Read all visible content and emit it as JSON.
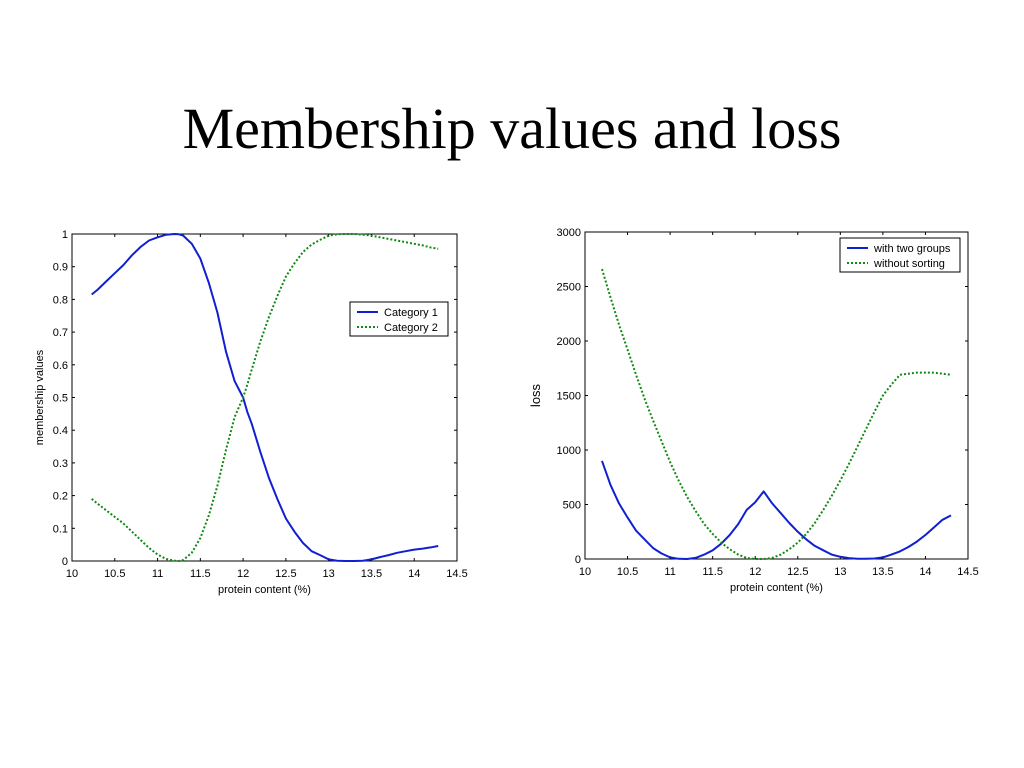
{
  "slide": {
    "title": "Membership values and loss"
  },
  "colors": {
    "category1": "#1020d0",
    "category2": "#118a11",
    "axis": "#000000"
  },
  "chart_data": [
    {
      "type": "line",
      "title": "",
      "xlabel": "protein content (%)",
      "ylabel": "membership values",
      "xlim": [
        10,
        14.5
      ],
      "ylim": [
        0,
        1
      ],
      "xticks": [
        "10",
        "10.5",
        "11",
        "11.5",
        "12",
        "12.5",
        "13",
        "13.5",
        "14",
        "14.5"
      ],
      "yticks": [
        "0",
        "0.1",
        "0.2",
        "0.3",
        "0.4",
        "0.5",
        "0.6",
        "0.7",
        "0.8",
        "0.9",
        "1"
      ],
      "legend": "top-right",
      "grid": false,
      "x": [
        10.23,
        10.3,
        10.4,
        10.5,
        10.6,
        10.7,
        10.8,
        10.9,
        11.0,
        11.1,
        11.2,
        11.25,
        11.3,
        11.4,
        11.5,
        11.6,
        11.7,
        11.8,
        11.9,
        12.0,
        12.05,
        12.1,
        12.2,
        12.3,
        12.4,
        12.5,
        12.6,
        12.7,
        12.8,
        12.9,
        13.0,
        13.1,
        13.2,
        13.3,
        13.4,
        13.5,
        13.6,
        13.7,
        13.8,
        13.9,
        14.0,
        14.1,
        14.2,
        14.28
      ],
      "series": [
        {
          "name": "Category 1",
          "style": "solid",
          "values": [
            0.815,
            0.83,
            0.855,
            0.88,
            0.905,
            0.935,
            0.96,
            0.98,
            0.99,
            0.998,
            1.0,
            0.999,
            0.995,
            0.97,
            0.925,
            0.85,
            0.76,
            0.64,
            0.55,
            0.5,
            0.455,
            0.42,
            0.335,
            0.255,
            0.19,
            0.13,
            0.09,
            0.055,
            0.03,
            0.018,
            0.005,
            0.001,
            0.0,
            0.0,
            0.001,
            0.005,
            0.012,
            0.018,
            0.025,
            0.03,
            0.035,
            0.038,
            0.042,
            0.046
          ]
        },
        {
          "name": "Category 2",
          "style": "dotted",
          "values": [
            0.19,
            0.175,
            0.155,
            0.135,
            0.115,
            0.09,
            0.065,
            0.04,
            0.02,
            0.006,
            0.001,
            0.0,
            0.003,
            0.025,
            0.07,
            0.14,
            0.23,
            0.34,
            0.44,
            0.5,
            0.54,
            0.585,
            0.67,
            0.745,
            0.81,
            0.87,
            0.91,
            0.945,
            0.968,
            0.982,
            0.995,
            0.999,
            1.0,
            1.0,
            0.998,
            0.995,
            0.99,
            0.985,
            0.98,
            0.975,
            0.97,
            0.965,
            0.958,
            0.955
          ]
        }
      ]
    },
    {
      "type": "line",
      "title": "",
      "xlabel": "protein content (%)",
      "ylabel": "loss",
      "xlim": [
        10,
        14.5
      ],
      "ylim": [
        0,
        3000
      ],
      "xticks": [
        "10",
        "10.5",
        "11",
        "11.5",
        "12",
        "12.5",
        "13",
        "13.5",
        "14",
        "14.5"
      ],
      "yticks": [
        "0",
        "500",
        "1000",
        "1500",
        "2000",
        "2500",
        "3000"
      ],
      "legend": "top-right",
      "grid": false,
      "x": [
        10.2,
        10.3,
        10.4,
        10.5,
        10.6,
        10.7,
        10.8,
        10.9,
        11.0,
        11.1,
        11.2,
        11.3,
        11.4,
        11.5,
        11.6,
        11.7,
        11.8,
        11.9,
        12.0,
        12.1,
        12.2,
        12.3,
        12.4,
        12.5,
        12.6,
        12.7,
        12.8,
        12.9,
        13.0,
        13.1,
        13.2,
        13.3,
        13.4,
        13.5,
        13.6,
        13.7,
        13.8,
        13.9,
        14.0,
        14.1,
        14.2,
        14.3
      ],
      "series": [
        {
          "name": "with two groups",
          "style": "solid",
          "values": [
            900,
            680,
            510,
            380,
            260,
            180,
            100,
            50,
            15,
            2,
            0,
            10,
            40,
            80,
            140,
            220,
            320,
            450,
            520,
            620,
            510,
            420,
            330,
            250,
            180,
            120,
            80,
            40,
            20,
            8,
            3,
            2,
            5,
            15,
            40,
            70,
            110,
            160,
            220,
            290,
            360,
            400
          ]
        },
        {
          "name": "without sorting",
          "style": "dotted",
          "values": [
            2660,
            2400,
            2150,
            1920,
            1690,
            1470,
            1270,
            1080,
            890,
            720,
            570,
            440,
            320,
            230,
            150,
            90,
            40,
            10,
            0,
            0,
            10,
            40,
            90,
            150,
            230,
            330,
            450,
            580,
            720,
            870,
            1030,
            1190,
            1350,
            1500,
            1600,
            1690,
            1700,
            1710,
            1710,
            1710,
            1700,
            1690
          ]
        }
      ]
    }
  ]
}
